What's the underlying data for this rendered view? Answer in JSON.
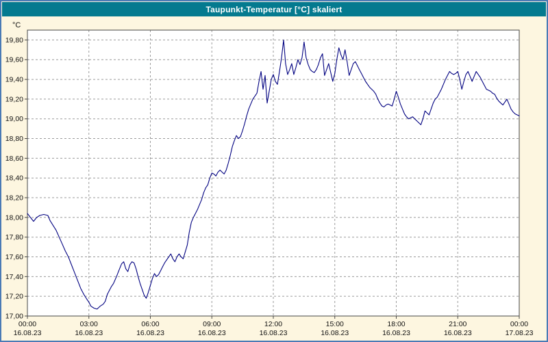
{
  "window": {
    "title": "Taupunkt-Temperatur [°C] skaliert"
  },
  "colors": {
    "title_bar": "#047a8f",
    "title_text": "#ffffff",
    "window_background": "#fdf6e0",
    "window_border": "#4a7ab5",
    "plot_background": "#ffffff",
    "plot_border": "#444444",
    "grid": "#9a9a9a",
    "series_line": "#000080",
    "tick_text": "#111111"
  },
  "chart_data": {
    "type": "line",
    "title": "Taupunkt-Temperatur [°C] skaliert",
    "ylabel": "°C",
    "xlabel": "",
    "grid": true,
    "legend_position": "none",
    "ylim": [
      17.0,
      19.9
    ],
    "xlim": [
      0,
      24
    ],
    "y_ticks": [
      {
        "value": 19.8,
        "label": "19,80"
      },
      {
        "value": 19.6,
        "label": "19,60"
      },
      {
        "value": 19.4,
        "label": "19,40"
      },
      {
        "value": 19.2,
        "label": "19,20"
      },
      {
        "value": 19.0,
        "label": "19,00"
      },
      {
        "value": 18.8,
        "label": "18,80"
      },
      {
        "value": 18.6,
        "label": "18,60"
      },
      {
        "value": 18.4,
        "label": "18,40"
      },
      {
        "value": 18.2,
        "label": "18,20"
      },
      {
        "value": 18.0,
        "label": "18,00"
      },
      {
        "value": 17.8,
        "label": "17,80"
      },
      {
        "value": 17.6,
        "label": "17,60"
      },
      {
        "value": 17.4,
        "label": "17,40"
      },
      {
        "value": 17.2,
        "label": "17,20"
      },
      {
        "value": 17.0,
        "label": "17,00"
      }
    ],
    "x_ticks": [
      {
        "hour": 0,
        "time": "00:00",
        "date": "16.08.23"
      },
      {
        "hour": 3,
        "time": "03:00",
        "date": "16.08.23"
      },
      {
        "hour": 6,
        "time": "06:00",
        "date": "16.08.23"
      },
      {
        "hour": 9,
        "time": "09:00",
        "date": "16.08.23"
      },
      {
        "hour": 12,
        "time": "12:00",
        "date": "16.08.23"
      },
      {
        "hour": 15,
        "time": "15:00",
        "date": "16.08.23"
      },
      {
        "hour": 18,
        "time": "18:00",
        "date": "16.08.23"
      },
      {
        "hour": 21,
        "time": "21:00",
        "date": "16.08.23"
      },
      {
        "hour": 24,
        "time": "00:00",
        "date": "17.08.23"
      }
    ],
    "series": [
      {
        "name": "Taupunkt-Temperatur",
        "color": "#000080",
        "points": [
          [
            0.0,
            18.04
          ],
          [
            0.15,
            18.0
          ],
          [
            0.3,
            17.96
          ],
          [
            0.45,
            18.0
          ],
          [
            0.6,
            18.02
          ],
          [
            0.8,
            18.03
          ],
          [
            1.0,
            18.02
          ],
          [
            1.1,
            17.97
          ],
          [
            1.25,
            17.92
          ],
          [
            1.4,
            17.87
          ],
          [
            1.55,
            17.8
          ],
          [
            1.7,
            17.73
          ],
          [
            1.85,
            17.66
          ],
          [
            2.0,
            17.6
          ],
          [
            2.15,
            17.52
          ],
          [
            2.3,
            17.44
          ],
          [
            2.45,
            17.36
          ],
          [
            2.6,
            17.28
          ],
          [
            2.75,
            17.22
          ],
          [
            2.9,
            17.17
          ],
          [
            3.0,
            17.14
          ],
          [
            3.1,
            17.1
          ],
          [
            3.25,
            17.08
          ],
          [
            3.4,
            17.07
          ],
          [
            3.55,
            17.1
          ],
          [
            3.7,
            17.12
          ],
          [
            3.8,
            17.15
          ],
          [
            3.9,
            17.22
          ],
          [
            4.0,
            17.26
          ],
          [
            4.1,
            17.3
          ],
          [
            4.2,
            17.33
          ],
          [
            4.35,
            17.4
          ],
          [
            4.5,
            17.48
          ],
          [
            4.6,
            17.53
          ],
          [
            4.7,
            17.55
          ],
          [
            4.8,
            17.48
          ],
          [
            4.9,
            17.45
          ],
          [
            5.0,
            17.52
          ],
          [
            5.1,
            17.55
          ],
          [
            5.2,
            17.54
          ],
          [
            5.3,
            17.48
          ],
          [
            5.4,
            17.4
          ],
          [
            5.5,
            17.33
          ],
          [
            5.6,
            17.27
          ],
          [
            5.7,
            17.21
          ],
          [
            5.8,
            17.18
          ],
          [
            5.9,
            17.24
          ],
          [
            6.0,
            17.31
          ],
          [
            6.1,
            17.38
          ],
          [
            6.2,
            17.43
          ],
          [
            6.3,
            17.4
          ],
          [
            6.4,
            17.42
          ],
          [
            6.5,
            17.46
          ],
          [
            6.6,
            17.5
          ],
          [
            6.7,
            17.54
          ],
          [
            6.8,
            17.57
          ],
          [
            6.9,
            17.6
          ],
          [
            7.0,
            17.63
          ],
          [
            7.1,
            17.58
          ],
          [
            7.2,
            17.55
          ],
          [
            7.3,
            17.6
          ],
          [
            7.4,
            17.63
          ],
          [
            7.5,
            17.6
          ],
          [
            7.6,
            17.58
          ],
          [
            7.7,
            17.65
          ],
          [
            7.8,
            17.72
          ],
          [
            7.9,
            17.85
          ],
          [
            8.0,
            17.95
          ],
          [
            8.1,
            18.0
          ],
          [
            8.2,
            18.04
          ],
          [
            8.3,
            18.08
          ],
          [
            8.4,
            18.13
          ],
          [
            8.5,
            18.18
          ],
          [
            8.6,
            18.25
          ],
          [
            8.7,
            18.3
          ],
          [
            8.8,
            18.33
          ],
          [
            8.9,
            18.4
          ],
          [
            9.0,
            18.45
          ],
          [
            9.1,
            18.44
          ],
          [
            9.2,
            18.42
          ],
          [
            9.3,
            18.46
          ],
          [
            9.4,
            18.48
          ],
          [
            9.5,
            18.46
          ],
          [
            9.6,
            18.44
          ],
          [
            9.7,
            18.48
          ],
          [
            9.8,
            18.55
          ],
          [
            9.9,
            18.63
          ],
          [
            10.0,
            18.72
          ],
          [
            10.1,
            18.78
          ],
          [
            10.2,
            18.83
          ],
          [
            10.3,
            18.8
          ],
          [
            10.4,
            18.82
          ],
          [
            10.5,
            18.88
          ],
          [
            10.6,
            18.95
          ],
          [
            10.7,
            19.03
          ],
          [
            10.8,
            19.1
          ],
          [
            10.9,
            19.15
          ],
          [
            11.0,
            19.2
          ],
          [
            11.1,
            19.23
          ],
          [
            11.2,
            19.26
          ],
          [
            11.3,
            19.38
          ],
          [
            11.4,
            19.48
          ],
          [
            11.5,
            19.3
          ],
          [
            11.6,
            19.44
          ],
          [
            11.7,
            19.16
          ],
          [
            11.8,
            19.28
          ],
          [
            11.9,
            19.4
          ],
          [
            12.0,
            19.45
          ],
          [
            12.1,
            19.38
          ],
          [
            12.2,
            19.35
          ],
          [
            12.3,
            19.48
          ],
          [
            12.4,
            19.62
          ],
          [
            12.5,
            19.8
          ],
          [
            12.55,
            19.68
          ],
          [
            12.6,
            19.56
          ],
          [
            12.7,
            19.45
          ],
          [
            12.8,
            19.5
          ],
          [
            12.9,
            19.56
          ],
          [
            13.0,
            19.45
          ],
          [
            13.1,
            19.52
          ],
          [
            13.2,
            19.6
          ],
          [
            13.3,
            19.55
          ],
          [
            13.4,
            19.62
          ],
          [
            13.5,
            19.78
          ],
          [
            13.6,
            19.62
          ],
          [
            13.7,
            19.55
          ],
          [
            13.8,
            19.5
          ],
          [
            13.9,
            19.48
          ],
          [
            14.0,
            19.47
          ],
          [
            14.1,
            19.5
          ],
          [
            14.2,
            19.55
          ],
          [
            14.3,
            19.62
          ],
          [
            14.4,
            19.66
          ],
          [
            14.5,
            19.44
          ],
          [
            14.6,
            19.5
          ],
          [
            14.7,
            19.56
          ],
          [
            14.8,
            19.47
          ],
          [
            14.9,
            19.38
          ],
          [
            15.0,
            19.46
          ],
          [
            15.1,
            19.6
          ],
          [
            15.2,
            19.72
          ],
          [
            15.3,
            19.65
          ],
          [
            15.4,
            19.6
          ],
          [
            15.5,
            19.7
          ],
          [
            15.6,
            19.58
          ],
          [
            15.7,
            19.44
          ],
          [
            15.8,
            19.5
          ],
          [
            15.9,
            19.56
          ],
          [
            16.0,
            19.58
          ],
          [
            16.1,
            19.54
          ],
          [
            16.2,
            19.5
          ],
          [
            16.3,
            19.46
          ],
          [
            16.4,
            19.42
          ],
          [
            16.5,
            19.38
          ],
          [
            16.6,
            19.35
          ],
          [
            16.7,
            19.32
          ],
          [
            16.8,
            19.3
          ],
          [
            16.9,
            19.28
          ],
          [
            17.0,
            19.25
          ],
          [
            17.1,
            19.2
          ],
          [
            17.2,
            19.16
          ],
          [
            17.3,
            19.13
          ],
          [
            17.4,
            19.12
          ],
          [
            17.5,
            19.14
          ],
          [
            17.6,
            19.15
          ],
          [
            17.7,
            19.14
          ],
          [
            17.8,
            19.13
          ],
          [
            17.9,
            19.2
          ],
          [
            18.0,
            19.28
          ],
          [
            18.1,
            19.22
          ],
          [
            18.2,
            19.15
          ],
          [
            18.3,
            19.1
          ],
          [
            18.4,
            19.05
          ],
          [
            18.5,
            19.02
          ],
          [
            18.6,
            19.0
          ],
          [
            18.7,
            19.01
          ],
          [
            18.8,
            19.02
          ],
          [
            18.9,
            19.0
          ],
          [
            19.0,
            18.98
          ],
          [
            19.1,
            18.96
          ],
          [
            19.2,
            18.94
          ],
          [
            19.3,
            19.0
          ],
          [
            19.4,
            19.08
          ],
          [
            19.5,
            19.06
          ],
          [
            19.6,
            19.04
          ],
          [
            19.7,
            19.1
          ],
          [
            19.8,
            19.16
          ],
          [
            19.9,
            19.2
          ],
          [
            20.0,
            19.22
          ],
          [
            20.1,
            19.26
          ],
          [
            20.2,
            19.3
          ],
          [
            20.3,
            19.35
          ],
          [
            20.4,
            19.4
          ],
          [
            20.5,
            19.44
          ],
          [
            20.6,
            19.48
          ],
          [
            20.7,
            19.46
          ],
          [
            20.8,
            19.45
          ],
          [
            20.9,
            19.46
          ],
          [
            21.0,
            19.48
          ],
          [
            21.1,
            19.4
          ],
          [
            21.2,
            19.3
          ],
          [
            21.3,
            19.38
          ],
          [
            21.4,
            19.45
          ],
          [
            21.5,
            19.48
          ],
          [
            21.6,
            19.43
          ],
          [
            21.7,
            19.38
          ],
          [
            21.8,
            19.43
          ],
          [
            21.9,
            19.48
          ],
          [
            22.0,
            19.45
          ],
          [
            22.1,
            19.42
          ],
          [
            22.2,
            19.38
          ],
          [
            22.3,
            19.34
          ],
          [
            22.4,
            19.3
          ],
          [
            22.5,
            19.29
          ],
          [
            22.6,
            19.28
          ],
          [
            22.7,
            19.26
          ],
          [
            22.8,
            19.25
          ],
          [
            22.9,
            19.21
          ],
          [
            23.0,
            19.18
          ],
          [
            23.1,
            19.16
          ],
          [
            23.2,
            19.14
          ],
          [
            23.3,
            19.17
          ],
          [
            23.4,
            19.2
          ],
          [
            23.5,
            19.15
          ],
          [
            23.6,
            19.1
          ],
          [
            23.7,
            19.07
          ],
          [
            23.8,
            19.05
          ],
          [
            23.9,
            19.04
          ],
          [
            24.0,
            19.03
          ]
        ]
      }
    ]
  }
}
